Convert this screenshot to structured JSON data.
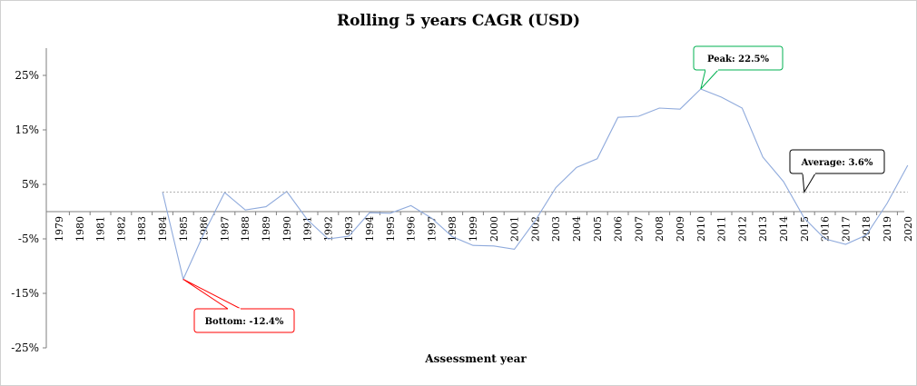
{
  "chart_data": {
    "type": "line",
    "title": "Rolling 5 years CAGR (USD)",
    "xlabel": "Assessment year",
    "ylabel": "",
    "ylim": [
      -25,
      30
    ],
    "yticks": [
      -25,
      -15,
      -5,
      5,
      15,
      25
    ],
    "ytick_labels": [
      "-25%",
      "-15%",
      "-5%",
      "5%",
      "15%",
      "25%"
    ],
    "categories": [
      "1979",
      "1980",
      "1981",
      "1982",
      "1983",
      "1984",
      "1985",
      "1986",
      "1987",
      "1988",
      "1989",
      "1990",
      "1991",
      "1992",
      "1993",
      "1994",
      "1995",
      "1996",
      "1997",
      "1998",
      "1999",
      "2000",
      "2001",
      "2002",
      "2003",
      "2004",
      "2005",
      "2006",
      "2007",
      "2008",
      "2009",
      "2010",
      "2011",
      "2012",
      "2013",
      "2014",
      "2015",
      "2016",
      "2017",
      "2018",
      "2019",
      "2020"
    ],
    "series": [
      {
        "name": "",
        "color": "#8faadc",
        "values": [
          null,
          null,
          null,
          null,
          null,
          3.6,
          -12.4,
          -4.0,
          3.5,
          0.3,
          0.9,
          3.7,
          -1.5,
          -5.0,
          -4.5,
          -0.2,
          -0.3,
          1.1,
          -1.2,
          -4.6,
          -6.2,
          -6.3,
          -6.9,
          -1.7,
          4.4,
          8.1,
          9.7,
          17.3,
          17.5,
          19.0,
          18.8,
          22.5,
          21.0,
          19.0,
          10.0,
          5.5,
          -1.2,
          -5.0,
          -6.0,
          -4.3,
          1.5,
          8.5
        ]
      },
      {
        "name": "",
        "color": "#a6a6a6",
        "dashed": true,
        "values": [
          null,
          null,
          null,
          null,
          null,
          3.6,
          3.6,
          3.6,
          3.6,
          3.6,
          3.6,
          3.6,
          3.6,
          3.6,
          3.6,
          3.6,
          3.6,
          3.6,
          3.6,
          3.6,
          3.6,
          3.6,
          3.6,
          3.6,
          3.6,
          3.6,
          3.6,
          3.6,
          3.6,
          3.6,
          3.6,
          3.6,
          3.6,
          3.6,
          3.6,
          3.6,
          3.6,
          3.6,
          3.6,
          3.6,
          3.6,
          3.6
        ]
      }
    ],
    "annotations": [
      {
        "id": "peak",
        "text": "Peak: 22.5%",
        "x": "2010",
        "y": 22.5,
        "color": "#00b050"
      },
      {
        "id": "average",
        "text": "Average: 3.6%",
        "x": "2015",
        "y": 3.6,
        "color": "#000000"
      },
      {
        "id": "bottom",
        "text": "Bottom: -12.4%",
        "x": "1985",
        "y": -12.4,
        "color": "#ff0000"
      }
    ],
    "grid": false,
    "legend": "none"
  }
}
